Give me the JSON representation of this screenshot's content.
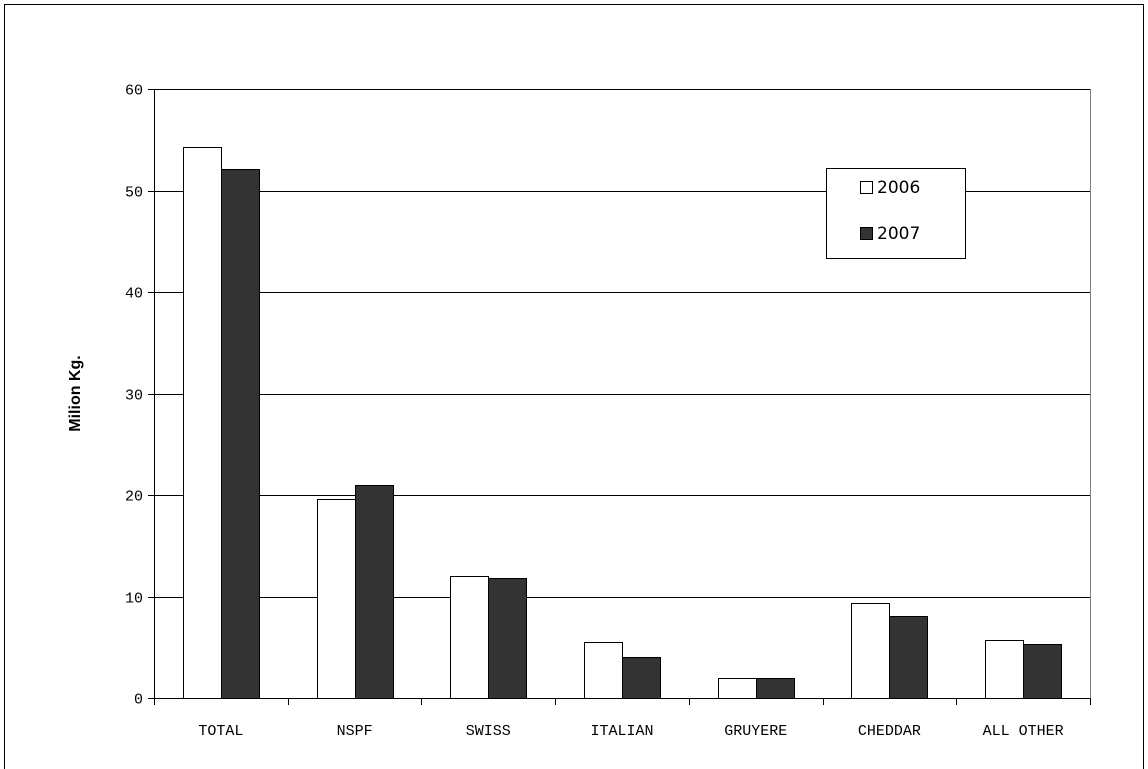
{
  "chart_data": {
    "type": "bar",
    "title": "",
    "xlabel": "",
    "ylabel": "Milion Kg.",
    "ylim": [
      0,
      60
    ],
    "yticks": [
      0,
      10,
      20,
      30,
      40,
      50,
      60
    ],
    "grid": true,
    "legend_position": "top-right",
    "categories": [
      "TOTAL",
      "NSPF",
      "SWISS",
      "ITALIAN",
      "GRUYERE",
      "CHEDDAR",
      "ALL OTHER"
    ],
    "series": [
      {
        "name": "2006",
        "color": "#ffffff",
        "values": [
          54.3,
          19.6,
          12.0,
          5.5,
          2.0,
          9.4,
          5.7
        ]
      },
      {
        "name": "2007",
        "color": "#333333",
        "values": [
          52.1,
          21.0,
          11.8,
          4.0,
          2.0,
          8.1,
          5.3
        ]
      }
    ]
  }
}
